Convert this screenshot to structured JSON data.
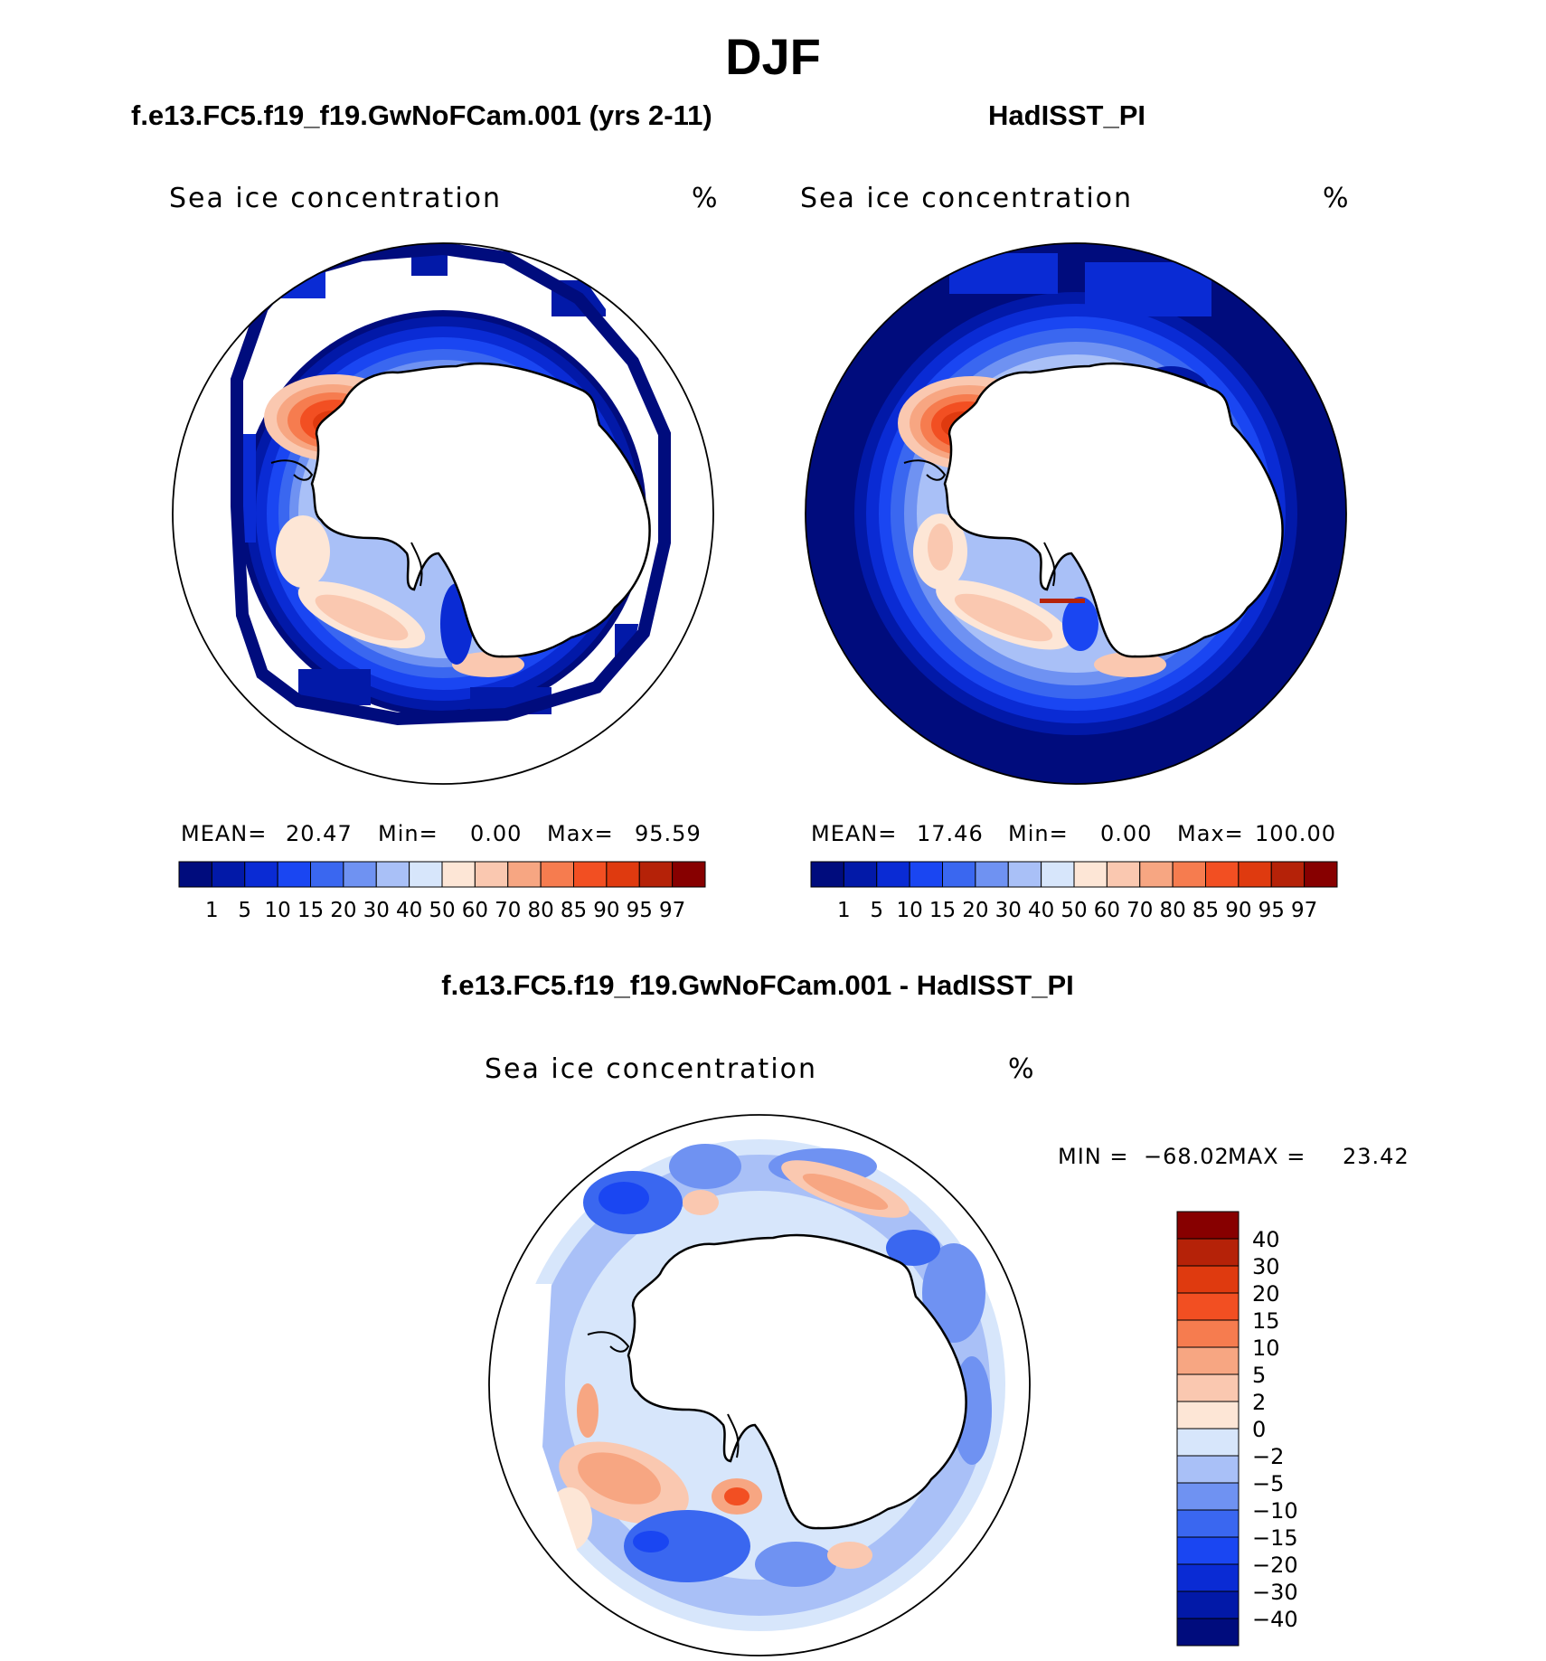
{
  "figure": {
    "title": "DJF",
    "land_color": "#ffffff",
    "coast_color": "#000000"
  },
  "panels": [
    {
      "id": "model",
      "subtitle": "f.e13.FC5.f19_f19.GwNoFCam.001 (yrs 2-11)",
      "variable": "Sea ice concentration",
      "units": "%",
      "stats": {
        "mean_label": "MEAN=",
        "mean": "20.47",
        "min_label": "Min=",
        "min": "0.00",
        "max_label": "Max=",
        "max": "95.59"
      }
    },
    {
      "id": "obs",
      "subtitle": "HadISST_PI",
      "variable": "Sea ice concentration",
      "units": "%",
      "stats": {
        "mean_label": "MEAN=",
        "mean": "17.46",
        "min_label": "Min=",
        "min": "0.00",
        "max_label": "Max=",
        "max": "100.00"
      }
    },
    {
      "id": "diff",
      "subtitle": "f.e13.FC5.f19_f19.GwNoFCam.001 - HadISST_PI",
      "variable": "Sea ice concentration",
      "units": "%",
      "stats": {
        "min_label": "MIN =",
        "min": "−68.02",
        "max_label": "MAX =",
        "max": "23.42"
      }
    }
  ],
  "colorbar_abs": {
    "labels": [
      "1",
      "5",
      "10",
      "15",
      "20",
      "30",
      "40",
      "50",
      "60",
      "70",
      "80",
      "85",
      "90",
      "95",
      "97"
    ],
    "colors": [
      "#000c7d",
      "#0219a8",
      "#0a2bd4",
      "#1a46f2",
      "#3a67f0",
      "#6f92f2",
      "#a9c0f7",
      "#d7e6fb",
      "#fde6d6",
      "#fac8b0",
      "#f7a682",
      "#f67c4f",
      "#f24f22",
      "#df3a0f",
      "#b52208",
      "#870000"
    ]
  },
  "colorbar_diff": {
    "labels": [
      "40",
      "30",
      "20",
      "15",
      "10",
      "5",
      "2",
      "0",
      "−2",
      "−5",
      "−10",
      "−15",
      "−20",
      "−30",
      "−40"
    ],
    "colors": [
      "#870000",
      "#b52208",
      "#df3a0f",
      "#f24f22",
      "#f67c4f",
      "#f7a682",
      "#fac8b0",
      "#fde6d6",
      "#d7e6fb",
      "#a9c0f7",
      "#6f92f2",
      "#3a67f0",
      "#1a46f2",
      "#0a2bd4",
      "#0219a8",
      "#000c7d"
    ]
  }
}
